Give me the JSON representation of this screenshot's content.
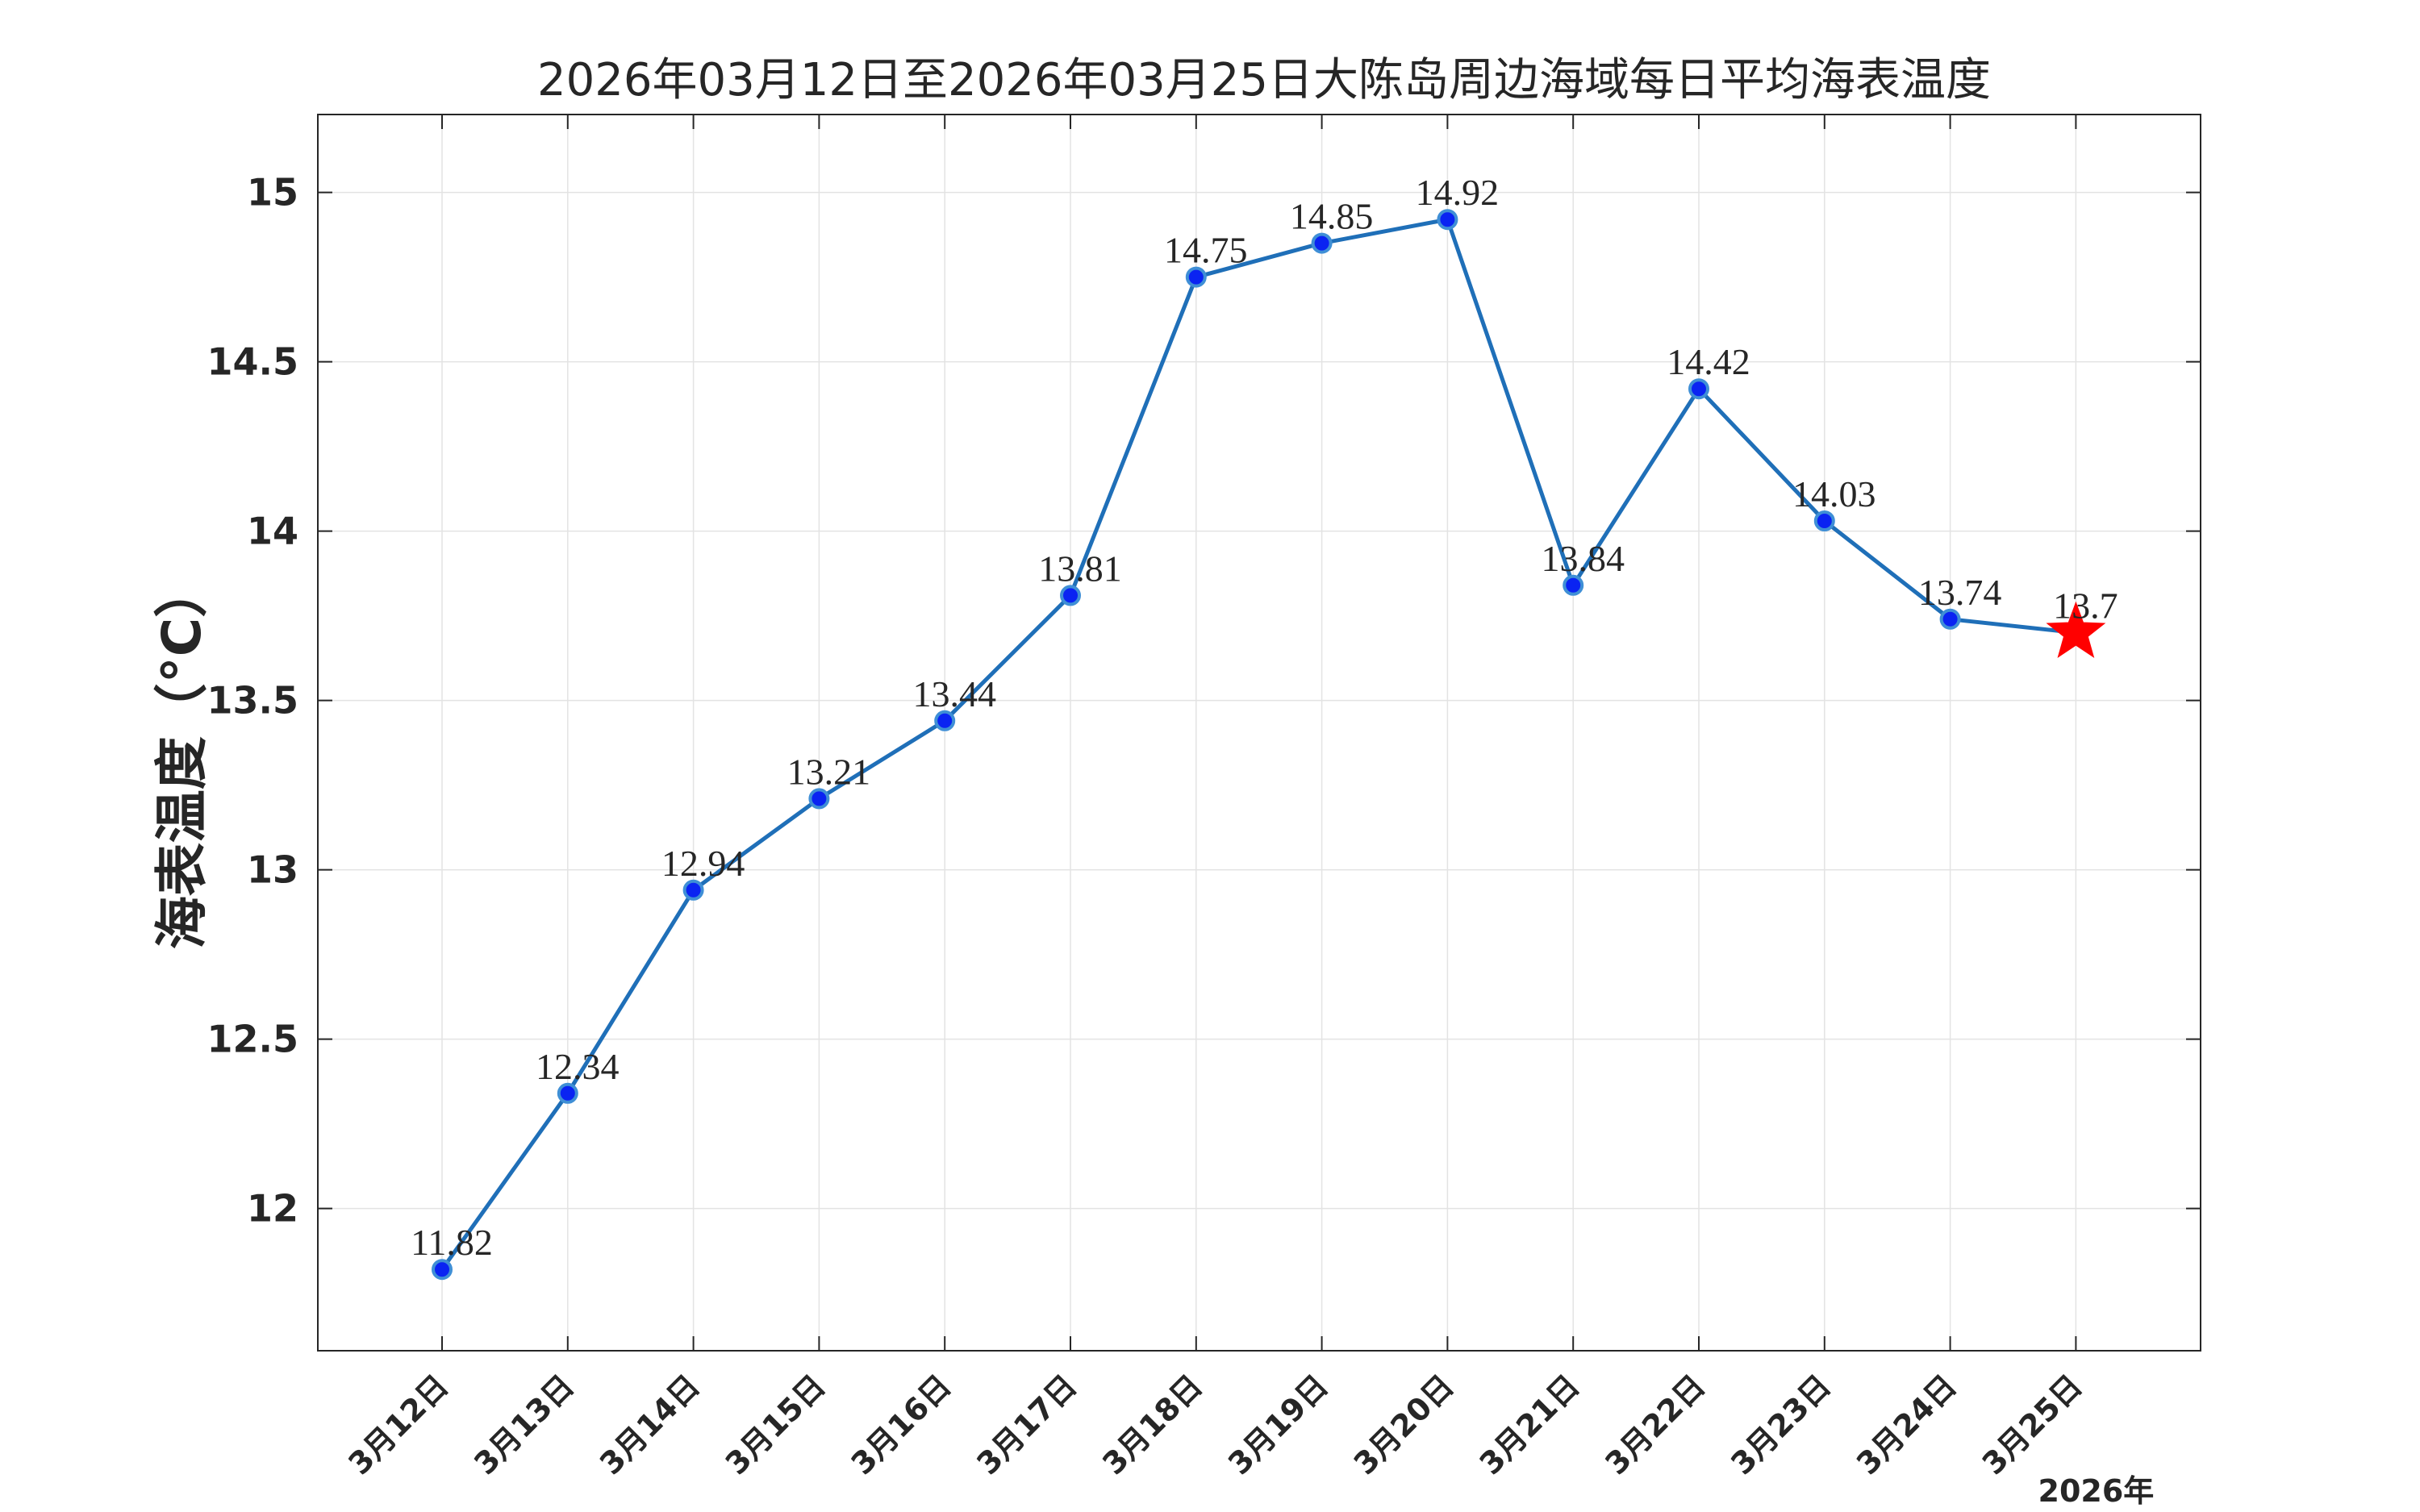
{
  "chart_data": {
    "type": "line",
    "title": "2026年03月12日至2026年03月25日大陈岛周边海域每日平均海表温度",
    "xlabel": "",
    "ylabel": "海表温度（°C）",
    "x_note": "2026年",
    "categories": [
      "3月12日",
      "3月13日",
      "3月14日",
      "3月15日",
      "3月16日",
      "3月17日",
      "3月18日",
      "3月19日",
      "3月20日",
      "3月21日",
      "3月22日",
      "3月23日",
      "3月24日",
      "3月25日"
    ],
    "series": [
      {
        "values": [
          11.82,
          12.34,
          12.94,
          13.21,
          13.44,
          13.81,
          14.75,
          14.85,
          14.92,
          13.84,
          14.42,
          14.03,
          13.74,
          13.7
        ],
        "data_labels": [
          "11.82",
          "12.34",
          "12.94",
          "13.21",
          "13.44",
          "13.81",
          "14.75",
          "14.85",
          "14.92",
          "13.84",
          "14.42",
          "14.03",
          "13.74",
          "13.7"
        ],
        "line_color": "#1f6fb8",
        "marker_color": "#0a23f2",
        "last_marker": "star",
        "last_marker_color": "#ff0000"
      }
    ],
    "ylim": [
      11.58,
      15.23
    ],
    "yticks": [
      12,
      12.5,
      13,
      13.5,
      14,
      14.5,
      15
    ],
    "ytick_labels": [
      "12",
      "12.5",
      "13",
      "13.5",
      "14",
      "14.5",
      "15"
    ],
    "grid": true,
    "legend": "none"
  }
}
